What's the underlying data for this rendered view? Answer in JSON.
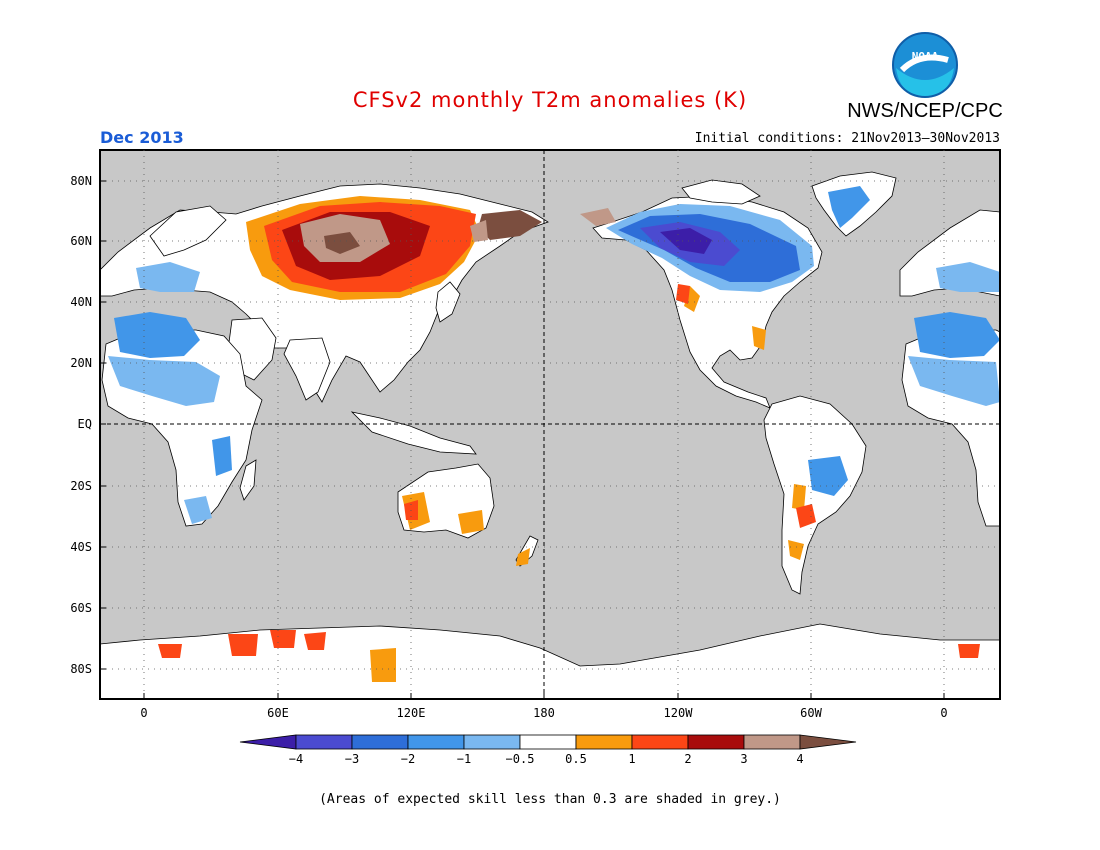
{
  "header": {
    "title": "CFSv2 monthly T2m anomalies (K)",
    "agency": "NWS/NCEP/CPC",
    "logo_text": "NOAA",
    "month": "Dec 2013",
    "initial_conditions": "Initial conditions: 21Nov2013–30Nov2013"
  },
  "map": {
    "lat_labels": [
      "80N",
      "60N",
      "40N",
      "20N",
      "EQ",
      "20S",
      "40S",
      "60S",
      "80S"
    ],
    "lon_labels": [
      "0",
      "60E",
      "120E",
      "180",
      "120W",
      "60W",
      "0"
    ],
    "ocean_color": "#c8c8c8",
    "land_color": "#ffffff"
  },
  "legend": {
    "labels": [
      "−4",
      "−3",
      "−2",
      "−1",
      "−0.5",
      "0.5",
      "1",
      "2",
      "3",
      "4"
    ],
    "colors": [
      "#3c1ea8",
      "#4b4bd0",
      "#2e6ed8",
      "#4196e9",
      "#7ab8f0",
      "#ffffff",
      "#f89b0e",
      "#fc4616",
      "#a80c0c",
      "#c09888",
      "#7b4e3f"
    ]
  },
  "footnote": "(Areas of expected skill less than 0.3 are shaded in grey.)"
}
